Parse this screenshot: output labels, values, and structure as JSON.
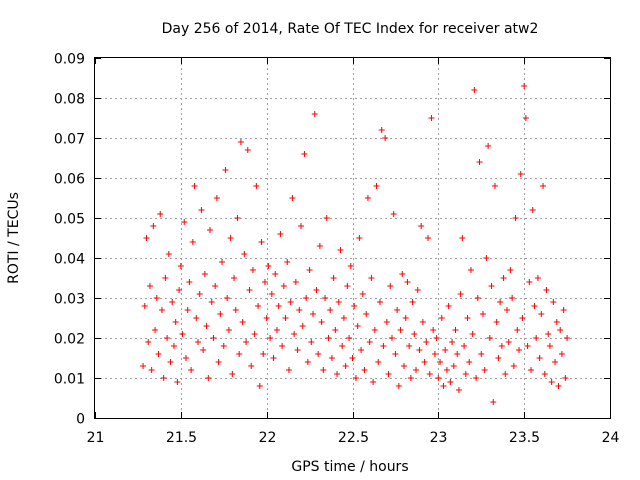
{
  "chart_data": {
    "type": "scatter",
    "title": "Day 256 of 2014, Rate Of TEC Index for receiver atw2",
    "xlabel": "GPS time / hours",
    "ylabel": "ROTI / TECUs",
    "xlim": [
      21,
      24
    ],
    "ylim": [
      0,
      0.09
    ],
    "x_ticks": [
      21,
      21.5,
      22,
      22.5,
      23,
      23.5,
      24
    ],
    "x_tick_labels": [
      "21",
      "21.5",
      "22",
      "22.5",
      "23",
      "23.5",
      "24"
    ],
    "y_ticks": [
      0,
      0.01,
      0.02,
      0.03,
      0.04,
      0.05,
      0.06,
      0.07,
      0.08,
      0.09
    ],
    "y_tick_labels": [
      "0",
      "0.01",
      "0.02",
      "0.03",
      "0.04",
      "0.05",
      "0.06",
      "0.07",
      "0.08",
      "0.09"
    ],
    "grid": true,
    "marker": "+",
    "color": "#ff0000",
    "series": [
      {
        "name": "ROTI",
        "points": [
          [
            21.28,
            0.013
          ],
          [
            21.29,
            0.028
          ],
          [
            21.3,
            0.045
          ],
          [
            21.31,
            0.019
          ],
          [
            21.32,
            0.033
          ],
          [
            21.33,
            0.012
          ],
          [
            21.34,
            0.048
          ],
          [
            21.35,
            0.022
          ],
          [
            21.36,
            0.03
          ],
          [
            21.37,
            0.016
          ],
          [
            21.38,
            0.051
          ],
          [
            21.39,
            0.027
          ],
          [
            21.4,
            0.01
          ],
          [
            21.41,
            0.035
          ],
          [
            21.42,
            0.02
          ],
          [
            21.43,
            0.041
          ],
          [
            21.44,
            0.014
          ],
          [
            21.45,
            0.029
          ],
          [
            21.46,
            0.018
          ],
          [
            21.47,
            0.024
          ],
          [
            21.48,
            0.009
          ],
          [
            21.49,
            0.032
          ],
          [
            21.5,
            0.038
          ],
          [
            21.51,
            0.021
          ],
          [
            21.52,
            0.049
          ],
          [
            21.53,
            0.015
          ],
          [
            21.54,
            0.027
          ],
          [
            21.55,
            0.034
          ],
          [
            21.56,
            0.012
          ],
          [
            21.57,
            0.044
          ],
          [
            21.58,
            0.058
          ],
          [
            21.59,
            0.025
          ],
          [
            21.6,
            0.019
          ],
          [
            21.61,
            0.031
          ],
          [
            21.62,
            0.052
          ],
          [
            21.63,
            0.017
          ],
          [
            21.64,
            0.036
          ],
          [
            21.65,
            0.023
          ],
          [
            21.66,
            0.01
          ],
          [
            21.67,
            0.047
          ],
          [
            21.68,
            0.029
          ],
          [
            21.69,
            0.02
          ],
          [
            21.7,
            0.033
          ],
          [
            21.71,
            0.055
          ],
          [
            21.72,
            0.014
          ],
          [
            21.73,
            0.026
          ],
          [
            21.74,
            0.039
          ],
          [
            21.75,
            0.018
          ],
          [
            21.76,
            0.062
          ],
          [
            21.77,
            0.03
          ],
          [
            21.78,
            0.022
          ],
          [
            21.79,
            0.045
          ],
          [
            21.8,
            0.011
          ],
          [
            21.81,
            0.035
          ],
          [
            21.82,
            0.027
          ],
          [
            21.83,
            0.05
          ],
          [
            21.84,
            0.016
          ],
          [
            21.85,
            0.069
          ],
          [
            21.86,
            0.024
          ],
          [
            21.87,
            0.041
          ],
          [
            21.88,
            0.019
          ],
          [
            21.89,
            0.067
          ],
          [
            21.9,
            0.032
          ],
          [
            21.91,
            0.013
          ],
          [
            21.92,
            0.037
          ],
          [
            21.93,
            0.021
          ],
          [
            21.94,
            0.058
          ],
          [
            21.95,
            0.028
          ],
          [
            21.96,
            0.008
          ],
          [
            21.97,
            0.044
          ],
          [
            21.98,
            0.016
          ],
          [
            21.99,
            0.034
          ],
          [
            22.0,
            0.025
          ],
          [
            22.01,
            0.038
          ],
          [
            22.02,
            0.02
          ],
          [
            22.03,
            0.031
          ],
          [
            22.04,
            0.015
          ],
          [
            22.05,
            0.036
          ],
          [
            22.06,
            0.022
          ],
          [
            22.07,
            0.028
          ],
          [
            22.08,
            0.046
          ],
          [
            22.09,
            0.018
          ],
          [
            22.1,
            0.033
          ],
          [
            22.11,
            0.025
          ],
          [
            22.12,
            0.039
          ],
          [
            22.13,
            0.012
          ],
          [
            22.14,
            0.029
          ],
          [
            22.15,
            0.055
          ],
          [
            22.16,
            0.021
          ],
          [
            22.17,
            0.034
          ],
          [
            22.18,
            0.017
          ],
          [
            22.19,
            0.027
          ],
          [
            22.2,
            0.048
          ],
          [
            22.21,
            0.023
          ],
          [
            22.22,
            0.066
          ],
          [
            22.23,
            0.03
          ],
          [
            22.24,
            0.014
          ],
          [
            22.25,
            0.037
          ],
          [
            22.26,
            0.019
          ],
          [
            22.27,
            0.026
          ],
          [
            22.28,
            0.076
          ],
          [
            22.29,
            0.032
          ],
          [
            22.3,
            0.016
          ],
          [
            22.31,
            0.043
          ],
          [
            22.32,
            0.024
          ],
          [
            22.33,
            0.012
          ],
          [
            22.34,
            0.03
          ],
          [
            22.35,
            0.05
          ],
          [
            22.36,
            0.02
          ],
          [
            22.37,
            0.027
          ],
          [
            22.38,
            0.015
          ],
          [
            22.39,
            0.035
          ],
          [
            22.4,
            0.022
          ],
          [
            22.41,
            0.011
          ],
          [
            22.42,
            0.029
          ],
          [
            22.43,
            0.042
          ],
          [
            22.44,
            0.018
          ],
          [
            22.45,
            0.025
          ],
          [
            22.46,
            0.013
          ],
          [
            22.47,
            0.033
          ],
          [
            22.48,
            0.02
          ],
          [
            22.49,
            0.038
          ],
          [
            22.5,
            0.015
          ],
          [
            22.51,
            0.028
          ],
          [
            22.52,
            0.01
          ],
          [
            22.53,
            0.023
          ],
          [
            22.54,
            0.045
          ],
          [
            22.55,
            0.017
          ],
          [
            22.56,
            0.031
          ],
          [
            22.57,
            0.012
          ],
          [
            22.58,
            0.026
          ],
          [
            22.59,
            0.055
          ],
          [
            22.6,
            0.019
          ],
          [
            22.61,
            0.035
          ],
          [
            22.62,
            0.009
          ],
          [
            22.63,
            0.022
          ],
          [
            22.64,
            0.058
          ],
          [
            22.65,
            0.014
          ],
          [
            22.66,
            0.029
          ],
          [
            22.67,
            0.072
          ],
          [
            22.68,
            0.018
          ],
          [
            22.69,
            0.07
          ],
          [
            22.7,
            0.024
          ],
          [
            22.71,
            0.011
          ],
          [
            22.72,
            0.033
          ],
          [
            22.73,
            0.02
          ],
          [
            22.74,
            0.051
          ],
          [
            22.75,
            0.016
          ],
          [
            22.76,
            0.027
          ],
          [
            22.77,
            0.008
          ],
          [
            22.78,
            0.022
          ],
          [
            22.79,
            0.036
          ],
          [
            22.8,
            0.013
          ],
          [
            22.81,
            0.025
          ],
          [
            22.82,
            0.034
          ],
          [
            22.83,
            0.018
          ],
          [
            22.84,
            0.01
          ],
          [
            22.85,
            0.029
          ],
          [
            22.86,
            0.021
          ],
          [
            22.87,
            0.012
          ],
          [
            22.88,
            0.032
          ],
          [
            22.89,
            0.017
          ],
          [
            22.9,
            0.048
          ],
          [
            22.91,
            0.024
          ],
          [
            22.92,
            0.014
          ],
          [
            22.93,
            0.019
          ],
          [
            22.94,
            0.045
          ],
          [
            22.95,
            0.011
          ],
          [
            22.96,
            0.075
          ],
          [
            22.97,
            0.022
          ],
          [
            22.98,
            0.016
          ],
          [
            22.99,
            0.02
          ],
          [
            23.0,
            0.01
          ],
          [
            23.01,
            0.014
          ],
          [
            23.02,
            0.025
          ],
          [
            23.03,
            0.008
          ],
          [
            23.04,
            0.017
          ],
          [
            23.05,
            0.012
          ],
          [
            23.06,
            0.028
          ],
          [
            23.07,
            0.009
          ],
          [
            23.08,
            0.019
          ],
          [
            23.09,
            0.013
          ],
          [
            23.1,
            0.022
          ],
          [
            23.11,
            0.016
          ],
          [
            23.12,
            0.007
          ],
          [
            23.13,
            0.031
          ],
          [
            23.14,
            0.045
          ],
          [
            23.15,
            0.018
          ],
          [
            23.16,
            0.011
          ],
          [
            23.17,
            0.025
          ],
          [
            23.18,
            0.014
          ],
          [
            23.19,
            0.037
          ],
          [
            23.2,
            0.021
          ],
          [
            23.21,
            0.082
          ],
          [
            23.22,
            0.01
          ],
          [
            23.23,
            0.03
          ],
          [
            23.24,
            0.064
          ],
          [
            23.25,
            0.016
          ],
          [
            23.26,
            0.026
          ],
          [
            23.27,
            0.012
          ],
          [
            23.28,
            0.04
          ],
          [
            23.29,
            0.068
          ],
          [
            23.3,
            0.02
          ],
          [
            23.31,
            0.033
          ],
          [
            23.32,
            0.004
          ],
          [
            23.33,
            0.058
          ],
          [
            23.34,
            0.024
          ],
          [
            23.35,
            0.015
          ],
          [
            23.36,
            0.029
          ],
          [
            23.37,
            0.018
          ],
          [
            23.38,
            0.035
          ],
          [
            23.39,
            0.011
          ],
          [
            23.4,
            0.027
          ],
          [
            23.41,
            0.019
          ],
          [
            23.42,
            0.037
          ],
          [
            23.43,
            0.03
          ],
          [
            23.44,
            0.013
          ],
          [
            23.45,
            0.05
          ],
          [
            23.46,
            0.022
          ],
          [
            23.47,
            0.017
          ],
          [
            23.48,
            0.061
          ],
          [
            23.49,
            0.025
          ],
          [
            23.5,
            0.083
          ],
          [
            23.51,
            0.075
          ],
          [
            23.52,
            0.018
          ],
          [
            23.53,
            0.034
          ],
          [
            23.54,
            0.012
          ],
          [
            23.55,
            0.052
          ],
          [
            23.56,
            0.028
          ],
          [
            23.57,
            0.02
          ],
          [
            23.58,
            0.035
          ],
          [
            23.59,
            0.015
          ],
          [
            23.6,
            0.026
          ],
          [
            23.61,
            0.058
          ],
          [
            23.62,
            0.011
          ],
          [
            23.63,
            0.032
          ],
          [
            23.64,
            0.021
          ],
          [
            23.65,
            0.018
          ],
          [
            23.66,
            0.009
          ],
          [
            23.67,
            0.029
          ],
          [
            23.68,
            0.014
          ],
          [
            23.69,
            0.024
          ],
          [
            23.7,
            0.008
          ],
          [
            23.71,
            0.022
          ],
          [
            23.72,
            0.016
          ],
          [
            23.73,
            0.027
          ],
          [
            23.74,
            0.01
          ],
          [
            23.75,
            0.02
          ]
        ]
      }
    ]
  }
}
